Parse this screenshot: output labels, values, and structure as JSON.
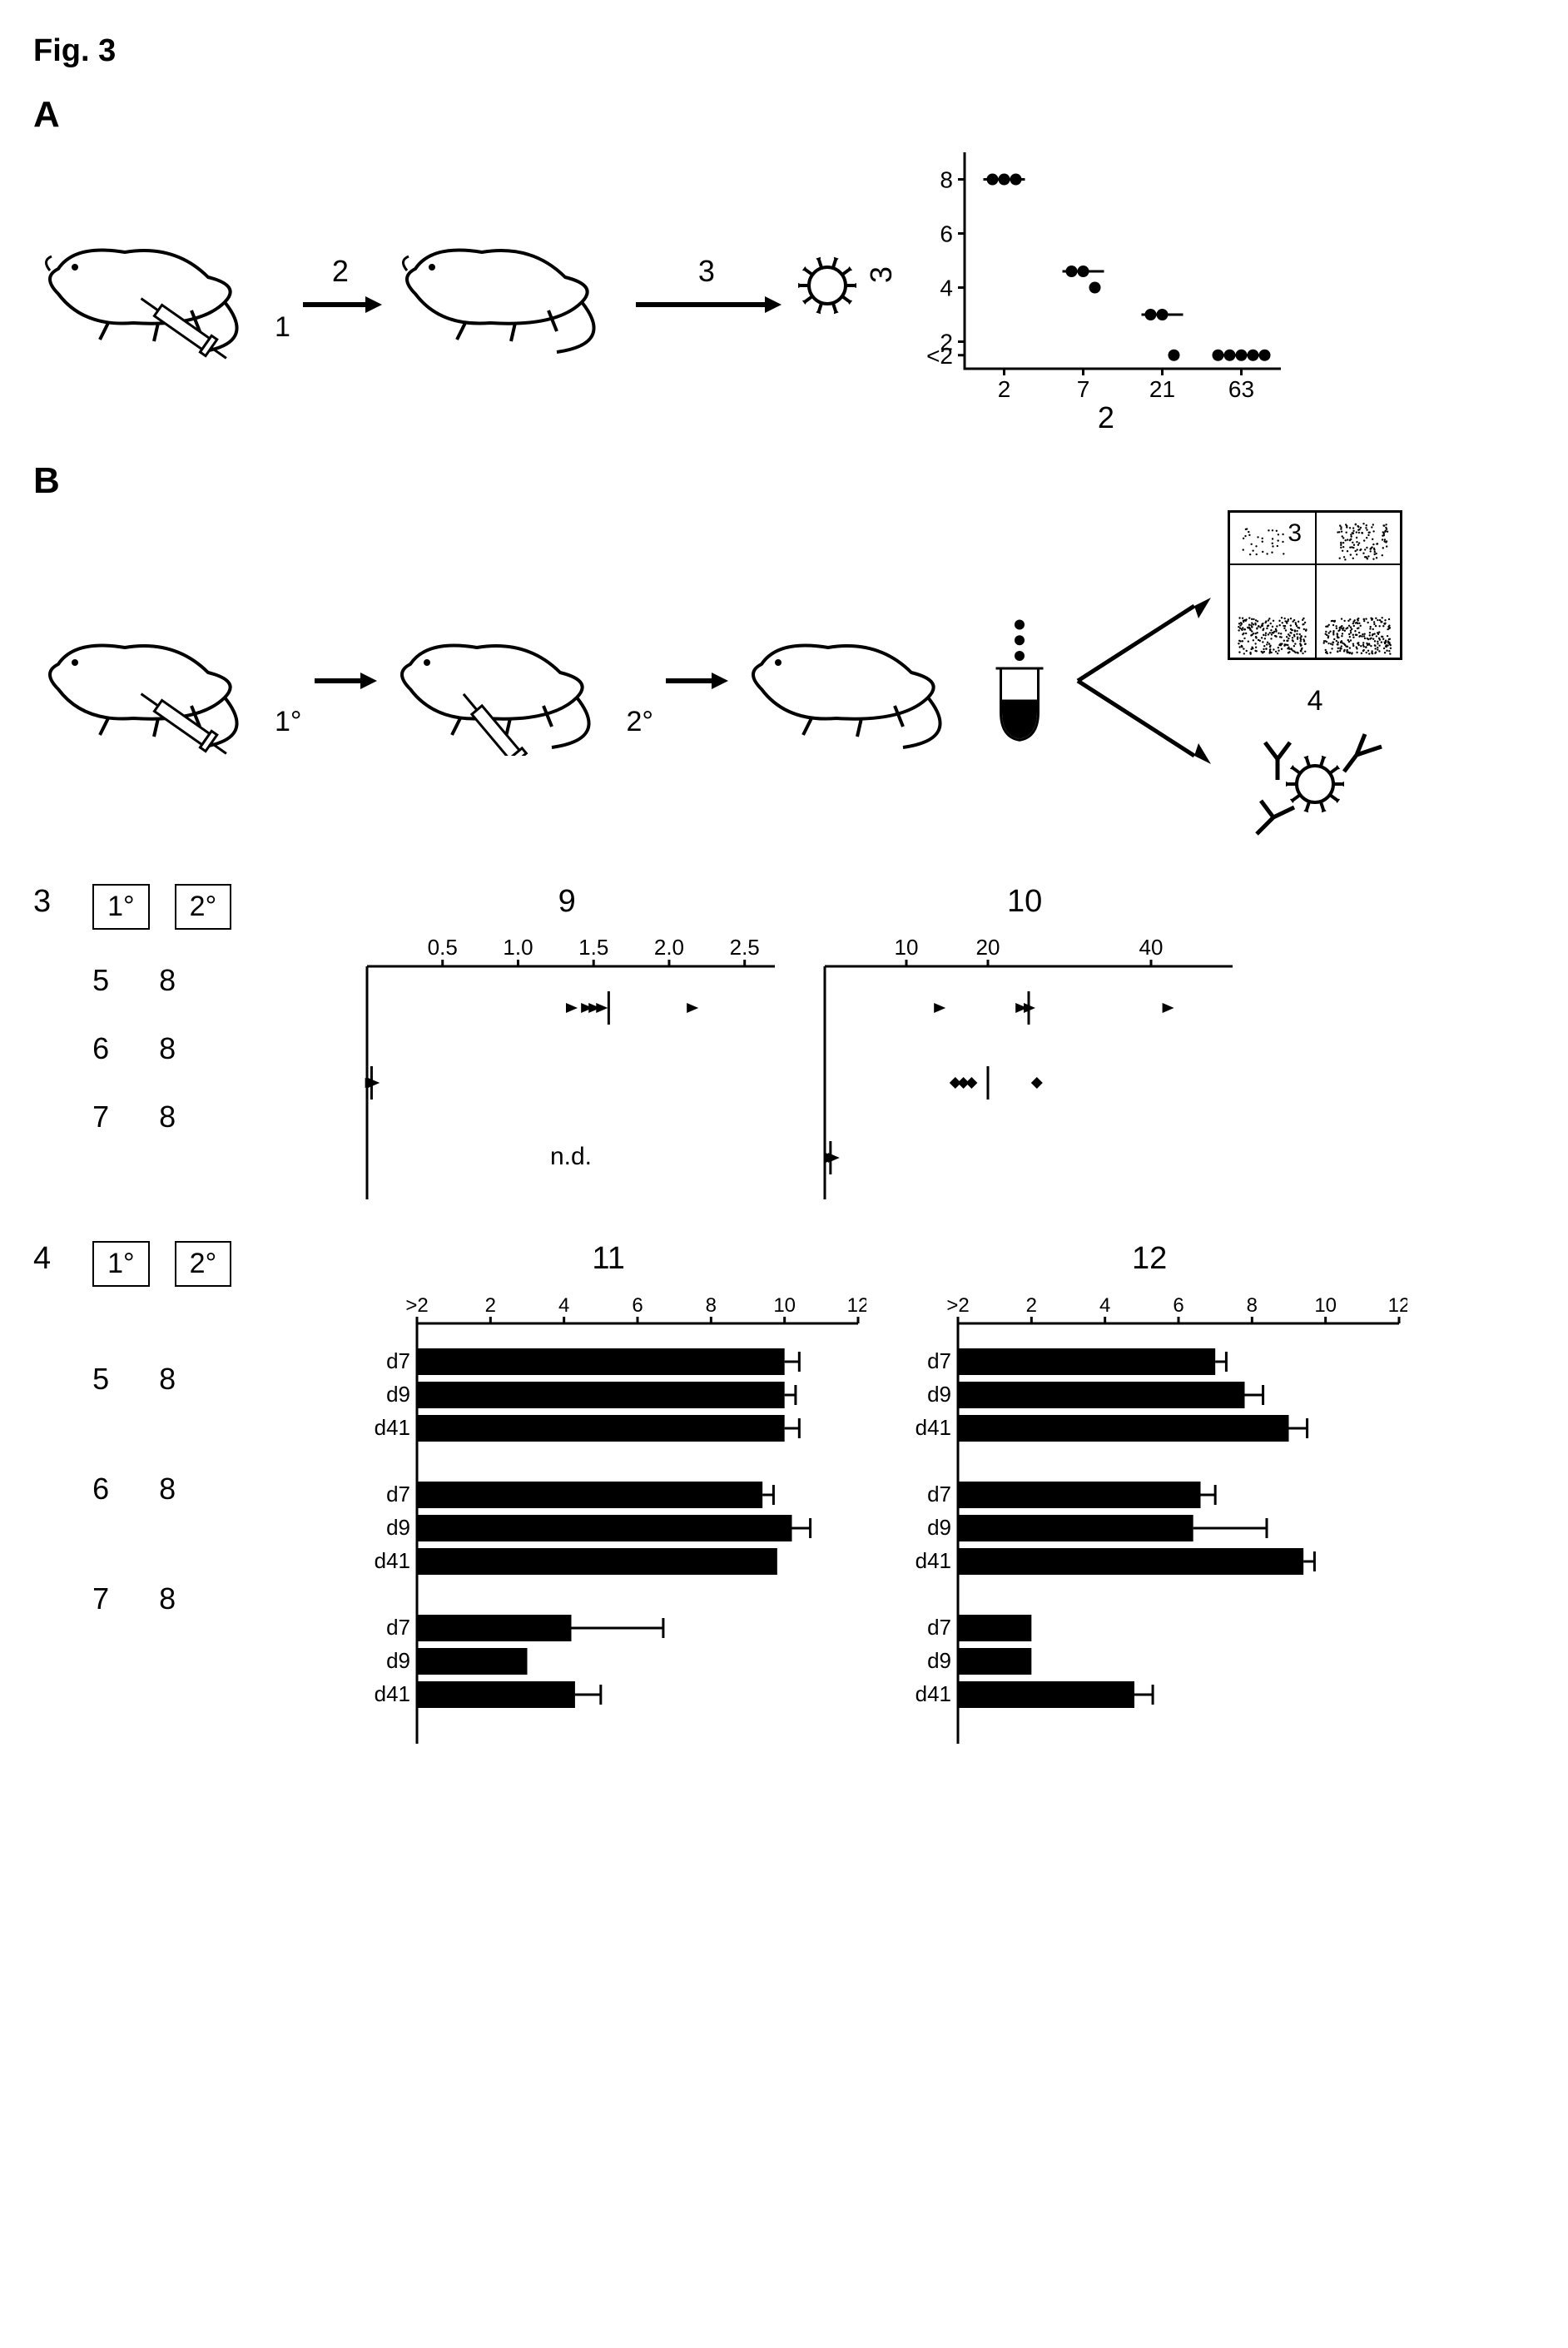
{
  "figure_title": "Fig. 3",
  "panelA": {
    "label": "A",
    "arrow1_label": "2",
    "arrow2_label": "3",
    "injection_label": "1",
    "scatter": {
      "type": "scatter",
      "xlabel": "2",
      "ylabel": "3",
      "x_categories": [
        "2",
        "7",
        "21",
        "63"
      ],
      "y_ticks": [
        "<2",
        "2",
        "4",
        "6",
        "8"
      ],
      "ylim": [
        1,
        9
      ],
      "data": {
        "2": [
          8,
          8,
          8
        ],
        "7": [
          4.6,
          4.6,
          4.0
        ],
        "21": [
          3.0,
          3.0,
          1.5
        ],
        "63": [
          1.5,
          1.5,
          1.5,
          1.5,
          1.5
        ]
      },
      "medians": {
        "2": 8,
        "7": 4.6,
        "21": 3.0,
        "63": 1.5
      },
      "point_color": "#000000",
      "background_color": "#ffffff",
      "axis_color": "#000000",
      "tick_fontsize": 28
    }
  },
  "panelB": {
    "label": "B",
    "inj1_label": "1°",
    "inj2_label": "2°",
    "flow_label": "3",
    "antibody_label": "4"
  },
  "section3": {
    "lead": "3",
    "col1_header": "1°",
    "col2_header": "2°",
    "rows": [
      {
        "c1": "5",
        "c2": "8"
      },
      {
        "c1": "6",
        "c2": "8"
      },
      {
        "c1": "7",
        "c2": "8"
      }
    ],
    "chart9": {
      "title": "9",
      "type": "scatter-horizontal",
      "x_ticks": [
        "0.5",
        "1.0",
        "1.5",
        "2.0",
        "2.5"
      ],
      "xlim": [
        0,
        2.7
      ],
      "rows": [
        {
          "points": [
            1.35,
            1.45,
            1.5,
            1.55,
            2.15
          ],
          "median": 1.6,
          "marker": "triangle"
        },
        {
          "points": [
            0.02,
            0.03,
            0.04
          ],
          "median": 0.03,
          "marker": "triangle"
        },
        {
          "nd": true,
          "nd_text": "n.d."
        }
      ],
      "axis_color": "#000000",
      "marker_color": "#000000"
    },
    "chart10": {
      "title": "10",
      "type": "scatter-horizontal",
      "x_ticks": [
        "10",
        "20",
        "40"
      ],
      "xlim": [
        0,
        50
      ],
      "rows": [
        {
          "points": [
            14,
            24,
            25,
            42
          ],
          "median": 25,
          "marker": "triangle"
        },
        {
          "points": [
            16,
            17,
            18,
            26
          ],
          "median": 20,
          "marker": "diamond"
        },
        {
          "points": [
            0.5,
            0.7,
            1.0
          ],
          "median": 0.7,
          "marker": "triangle"
        }
      ],
      "axis_color": "#000000",
      "marker_color": "#000000"
    }
  },
  "section4": {
    "lead": "4",
    "col1_header": "1°",
    "col2_header": "2°",
    "groups": [
      {
        "c1": "5",
        "c2": "8"
      },
      {
        "c1": "6",
        "c2": "8"
      },
      {
        "c1": "7",
        "c2": "8"
      }
    ],
    "day_labels": [
      "d7",
      "d9",
      "d41"
    ],
    "chart11": {
      "title": "11",
      "type": "bar-horizontal",
      "x_ticks": [
        ">2",
        "2",
        "4",
        "6",
        "8",
        "10",
        "12"
      ],
      "xlim": [
        0,
        12
      ],
      "bar_color": "#000000",
      "error_color": "#000000",
      "groups": [
        [
          {
            "label": "d7",
            "value": 10.0,
            "err": 0.4
          },
          {
            "label": "d9",
            "value": 10.0,
            "err": 0.3
          },
          {
            "label": "d41",
            "value": 10.0,
            "err": 0.4
          }
        ],
        [
          {
            "label": "d7",
            "value": 9.4,
            "err": 0.3
          },
          {
            "label": "d9",
            "value": 10.2,
            "err": 0.5
          },
          {
            "label": "d41",
            "value": 9.8,
            "err": 0.0
          }
        ],
        [
          {
            "label": "d7",
            "value": 4.2,
            "err": 2.5
          },
          {
            "label": "d9",
            "value": 3.0,
            "err": 0.0
          },
          {
            "label": "d41",
            "value": 4.3,
            "err": 0.7
          }
        ]
      ]
    },
    "chart12": {
      "title": "12",
      "type": "bar-horizontal",
      "x_ticks": [
        ">2",
        "2",
        "4",
        "6",
        "8",
        "10",
        "12"
      ],
      "xlim": [
        0,
        12
      ],
      "bar_color": "#000000",
      "error_color": "#000000",
      "groups": [
        [
          {
            "label": "d7",
            "value": 7.0,
            "err": 0.3
          },
          {
            "label": "d9",
            "value": 7.8,
            "err": 0.5
          },
          {
            "label": "d41",
            "value": 9.0,
            "err": 0.5
          }
        ],
        [
          {
            "label": "d7",
            "value": 6.6,
            "err": 0.4
          },
          {
            "label": "d9",
            "value": 6.4,
            "err": 2.0
          },
          {
            "label": "d41",
            "value": 9.4,
            "err": 0.3
          }
        ],
        [
          {
            "label": "d7",
            "value": 2.0,
            "err": 0.0
          },
          {
            "label": "d9",
            "value": 2.0,
            "err": 0.0
          },
          {
            "label": "d41",
            "value": 4.8,
            "err": 0.5
          }
        ]
      ]
    }
  },
  "colors": {
    "foreground": "#000000",
    "background": "#ffffff"
  }
}
